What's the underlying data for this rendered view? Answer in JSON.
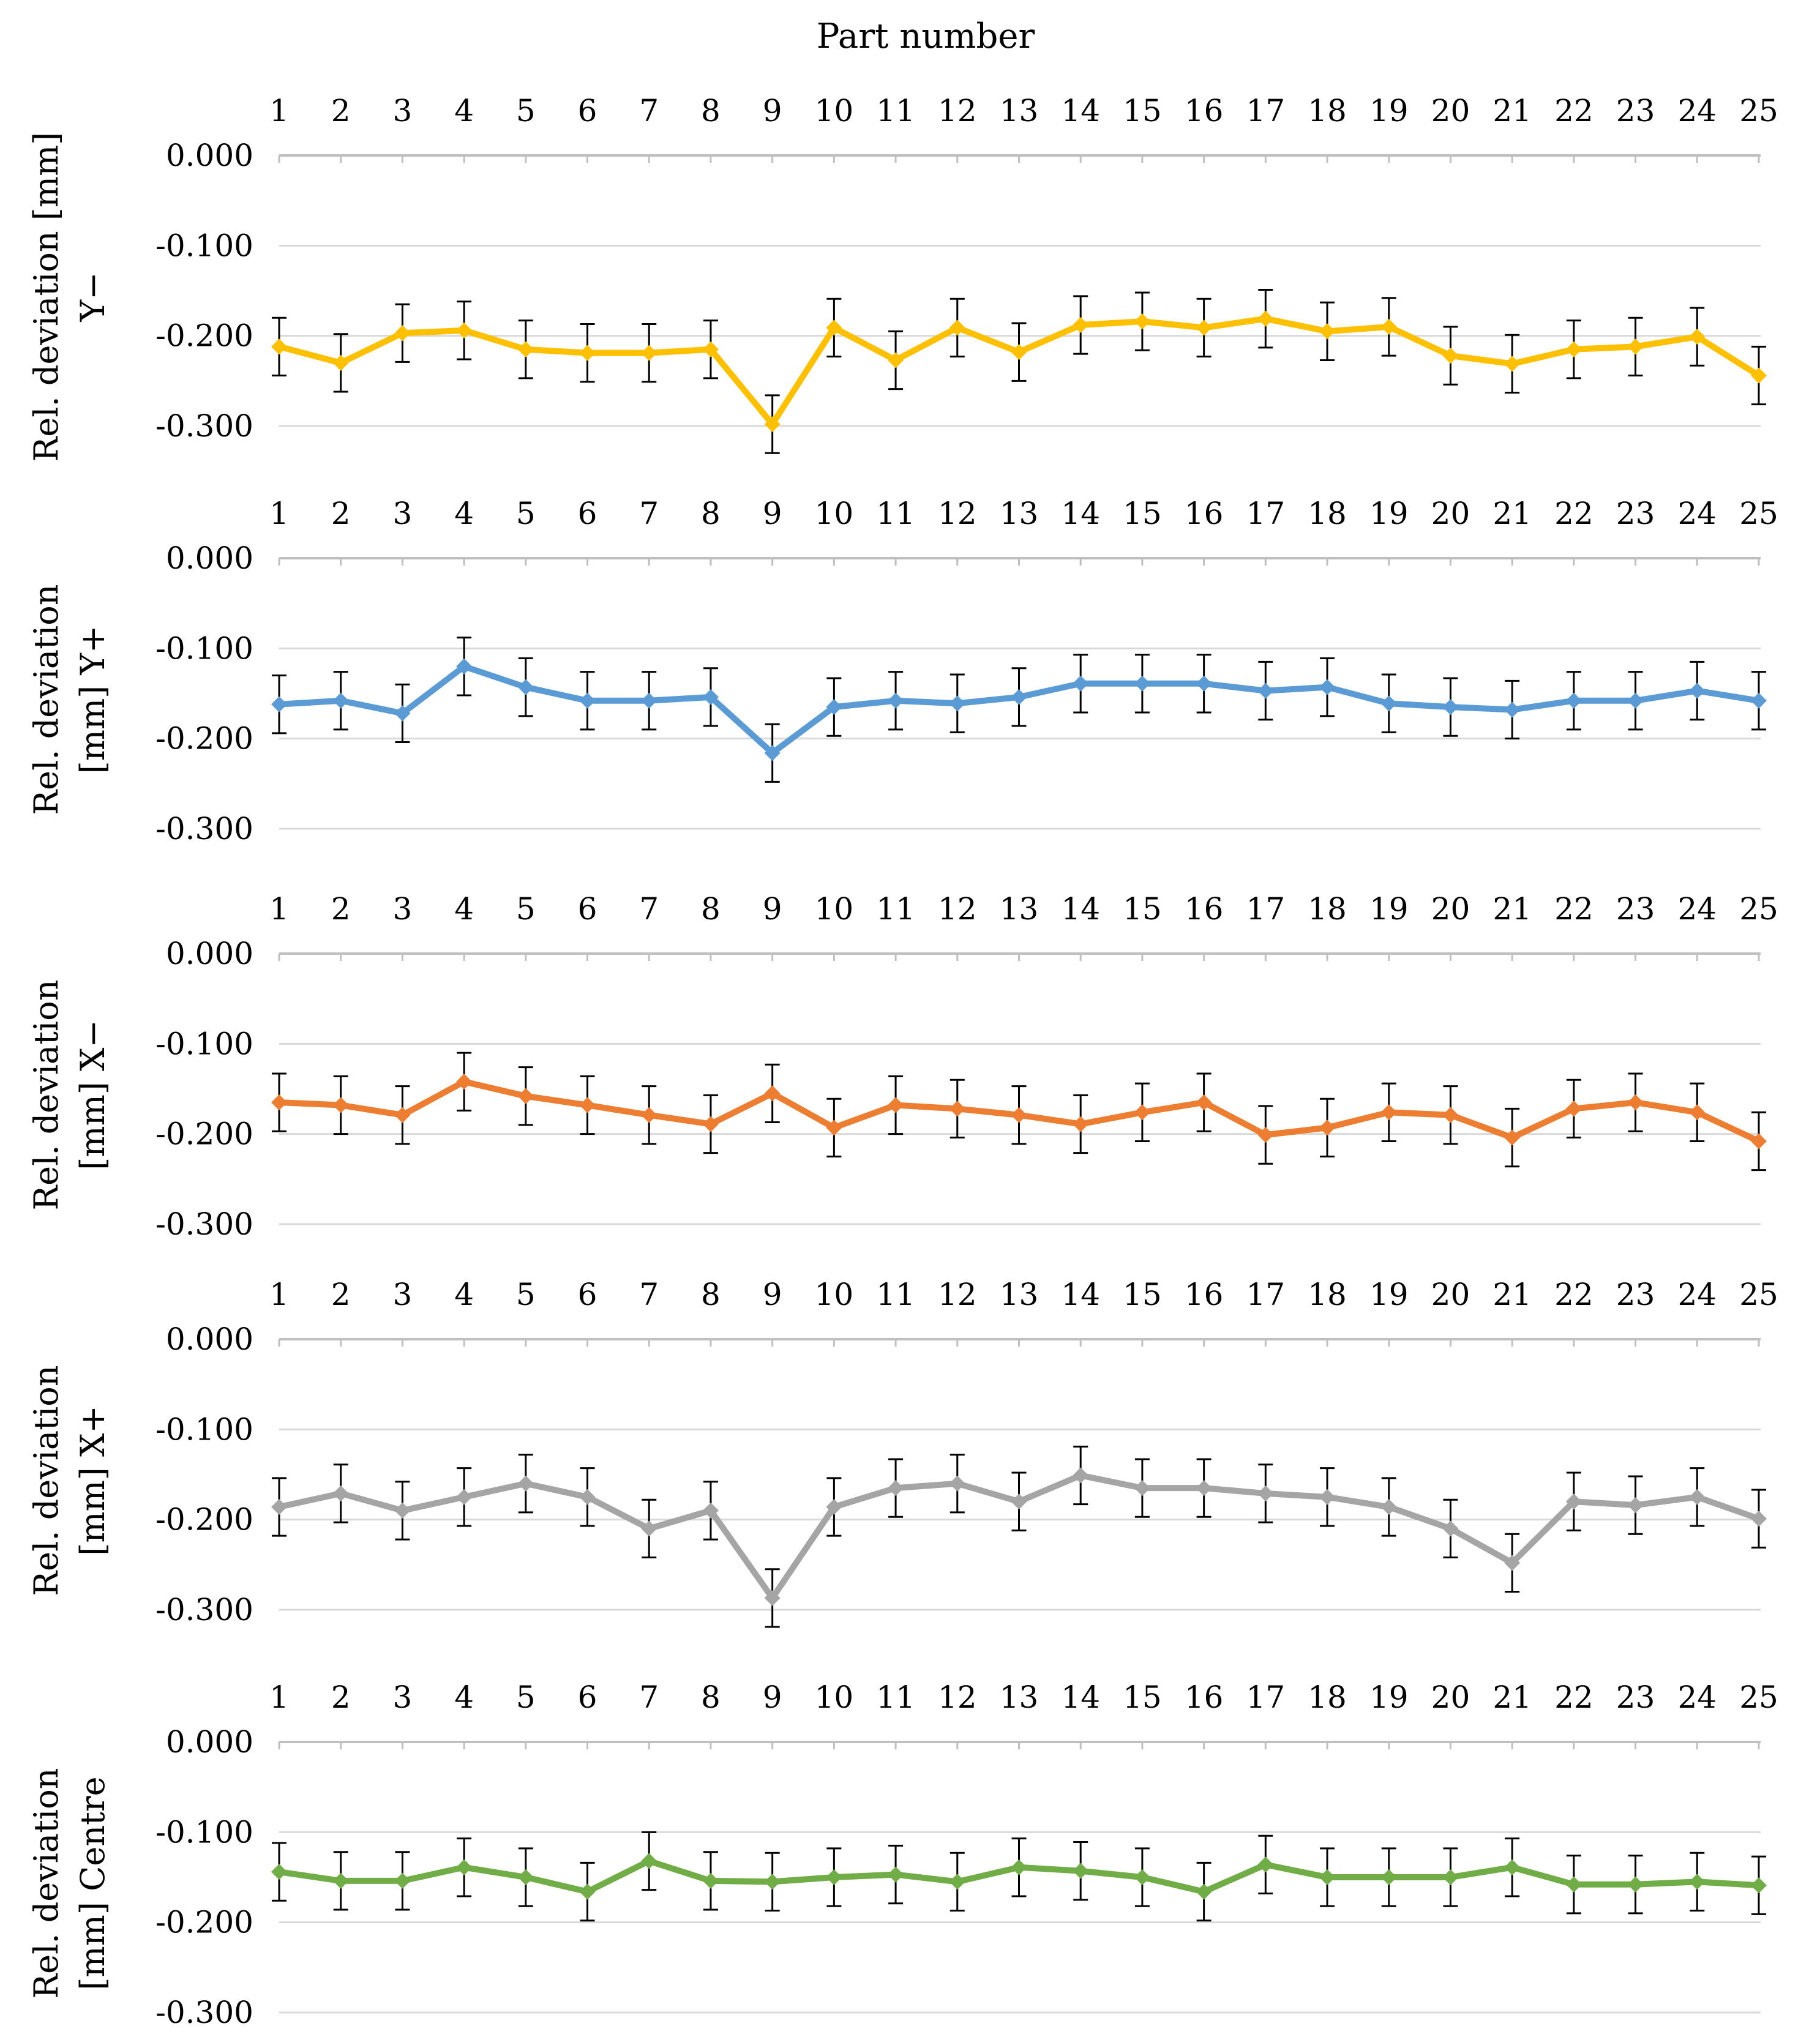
{
  "chart_data": {
    "title": "Part number",
    "panels": [
      {
        "type": "line",
        "name": "Y-",
        "ylabel_lines": [
          "Rel. deviation [mm]",
          "Y−"
        ],
        "color": "#FFC000",
        "x": [
          1,
          2,
          3,
          4,
          5,
          6,
          7,
          8,
          9,
          10,
          11,
          12,
          13,
          14,
          15,
          16,
          17,
          18,
          19,
          20,
          21,
          22,
          23,
          24,
          25
        ],
        "values": [
          -0.212,
          -0.23,
          -0.197,
          -0.194,
          -0.215,
          -0.219,
          -0.219,
          -0.215,
          -0.298,
          -0.191,
          -0.227,
          -0.191,
          -0.218,
          -0.188,
          -0.184,
          -0.191,
          -0.181,
          -0.195,
          -0.19,
          -0.222,
          -0.231,
          -0.215,
          -0.212,
          -0.201,
          -0.244
        ],
        "error": 0.032,
        "ylim": [
          -0.3,
          0.0
        ],
        "yticks": [
          "0.000",
          "-0.100",
          "-0.200",
          "-0.300"
        ]
      },
      {
        "type": "line",
        "name": "Y+",
        "ylabel_lines": [
          "Rel. deviation",
          "[mm] Y+"
        ],
        "color": "#5B9BD5",
        "x": [
          1,
          2,
          3,
          4,
          5,
          6,
          7,
          8,
          9,
          10,
          11,
          12,
          13,
          14,
          15,
          16,
          17,
          18,
          19,
          20,
          21,
          22,
          23,
          24,
          25
        ],
        "values": [
          -0.162,
          -0.158,
          -0.172,
          -0.12,
          -0.143,
          -0.158,
          -0.158,
          -0.154,
          -0.216,
          -0.165,
          -0.158,
          -0.161,
          -0.154,
          -0.139,
          -0.139,
          -0.139,
          -0.147,
          -0.143,
          -0.161,
          -0.165,
          -0.168,
          -0.158,
          -0.158,
          -0.147,
          -0.158
        ],
        "error": 0.032,
        "ylim": [
          -0.3,
          0.0
        ],
        "yticks": [
          "0.000",
          "-0.100",
          "-0.200",
          "-0.300"
        ]
      },
      {
        "type": "line",
        "name": "X-",
        "ylabel_lines": [
          "Rel. deviation",
          "[mm] X−"
        ],
        "color": "#ED7D31",
        "x": [
          1,
          2,
          3,
          4,
          5,
          6,
          7,
          8,
          9,
          10,
          11,
          12,
          13,
          14,
          15,
          16,
          17,
          18,
          19,
          20,
          21,
          22,
          23,
          24,
          25
        ],
        "values": [
          -0.165,
          -0.168,
          -0.179,
          -0.142,
          -0.158,
          -0.168,
          -0.179,
          -0.189,
          -0.155,
          -0.193,
          -0.168,
          -0.172,
          -0.179,
          -0.189,
          -0.176,
          -0.165,
          -0.201,
          -0.193,
          -0.176,
          -0.179,
          -0.204,
          -0.172,
          -0.165,
          -0.176,
          -0.208
        ],
        "error": 0.032,
        "ylim": [
          -0.3,
          0.0
        ],
        "yticks": [
          "0.000",
          "-0.100",
          "-0.200",
          "-0.300"
        ]
      },
      {
        "type": "line",
        "name": "X+",
        "ylabel_lines": [
          "Rel. deviation",
          "[mm] X+"
        ],
        "color": "#A5A5A5",
        "x": [
          1,
          2,
          3,
          4,
          5,
          6,
          7,
          8,
          9,
          10,
          11,
          12,
          13,
          14,
          15,
          16,
          17,
          18,
          19,
          20,
          21,
          22,
          23,
          24,
          25
        ],
        "values": [
          -0.186,
          -0.171,
          -0.19,
          -0.175,
          -0.16,
          -0.175,
          -0.21,
          -0.19,
          -0.287,
          -0.186,
          -0.165,
          -0.16,
          -0.18,
          -0.151,
          -0.165,
          -0.165,
          -0.171,
          -0.175,
          -0.186,
          -0.21,
          -0.248,
          -0.18,
          -0.184,
          -0.175,
          -0.199
        ],
        "error": 0.032,
        "ylim": [
          -0.3,
          0.0
        ],
        "yticks": [
          "0.000",
          "-0.100",
          "-0.200",
          "-0.300"
        ]
      },
      {
        "type": "line",
        "name": "Centre",
        "ylabel_lines": [
          "Rel. deviation",
          "[mm] Centre"
        ],
        "color": "#70AD47",
        "x": [
          1,
          2,
          3,
          4,
          5,
          6,
          7,
          8,
          9,
          10,
          11,
          12,
          13,
          14,
          15,
          16,
          17,
          18,
          19,
          20,
          21,
          22,
          23,
          24,
          25
        ],
        "values": [
          -0.144,
          -0.154,
          -0.154,
          -0.139,
          -0.15,
          -0.166,
          -0.132,
          -0.154,
          -0.155,
          -0.15,
          -0.147,
          -0.155,
          -0.139,
          -0.143,
          -0.15,
          -0.166,
          -0.136,
          -0.15,
          -0.15,
          -0.15,
          -0.139,
          -0.158,
          -0.158,
          -0.155,
          -0.159
        ],
        "error": 0.032,
        "ylim": [
          -0.3,
          0.0
        ],
        "yticks": [
          "0.000",
          "-0.100",
          "-0.200",
          "-0.300"
        ]
      }
    ]
  }
}
